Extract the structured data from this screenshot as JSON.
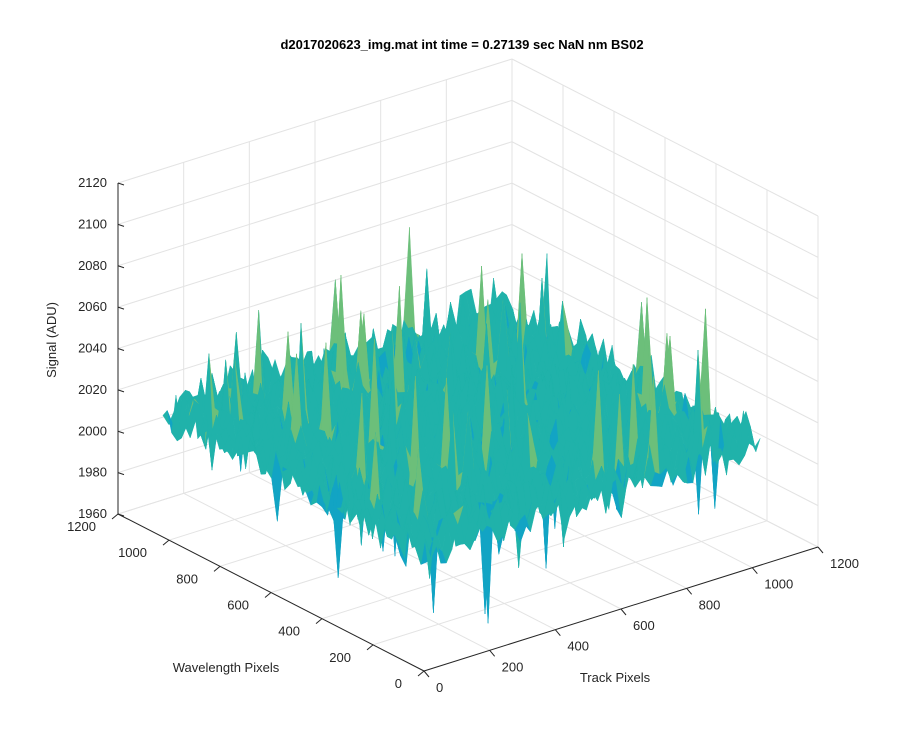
{
  "chart_data": {
    "type": "surface3d",
    "title": "d2017020623_img.mat int time = 0.27139 sec  NaN nm BS02",
    "xlabel": "Track Pixels",
    "ylabel": "Wavelength Pixels",
    "zlabel": "Signal (ADU)",
    "xlim": [
      0,
      1200
    ],
    "ylim": [
      0,
      1200
    ],
    "zlim": [
      1960,
      2120
    ],
    "x_ticks": [
      "0",
      "200",
      "400",
      "600",
      "800",
      "1000",
      "1200"
    ],
    "y_ticks": [
      "0",
      "200",
      "400",
      "600",
      "800",
      "1000",
      "1200"
    ],
    "z_ticks": [
      "1960",
      "1980",
      "2000",
      "2020",
      "2040",
      "2060",
      "2080",
      "2100",
      "2120"
    ],
    "grid": true,
    "colormap": [
      "#0072bd",
      "#12a4c4",
      "#20b2aa",
      "#6cbf7a",
      "#bdbb48",
      "#e8c62b"
    ],
    "surface_summary": {
      "x_range": [
        0,
        1024
      ],
      "y_range": [
        0,
        1024
      ],
      "typical_signal": 2020,
      "signal_min": 1962,
      "signal_max": 2100
    }
  }
}
